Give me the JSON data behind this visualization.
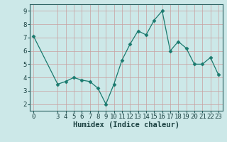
{
  "x": [
    0,
    3,
    4,
    5,
    6,
    7,
    8,
    9,
    10,
    11,
    12,
    13,
    14,
    15,
    16,
    17,
    18,
    19,
    20,
    21,
    22,
    23
  ],
  "y": [
    7.1,
    3.5,
    3.7,
    4.0,
    3.8,
    3.7,
    3.2,
    2.0,
    3.5,
    5.3,
    6.5,
    7.5,
    7.2,
    8.3,
    9.0,
    6.0,
    6.7,
    6.2,
    5.0,
    5.0,
    5.5,
    4.2
  ],
  "line_color": "#1a7a6e",
  "marker": "D",
  "marker_size": 2.5,
  "bg_color": "#cce8e8",
  "grid_color": "#b0cccc",
  "xlabel": "Humidex (Indice chaleur)",
  "xlabel_fontsize": 7.5,
  "tick_fontsize": 6.5,
  "xlim": [
    -0.5,
    23.5
  ],
  "ylim": [
    1.5,
    9.5
  ],
  "yticks": [
    2,
    3,
    4,
    5,
    6,
    7,
    8,
    9
  ],
  "xticks": [
    0,
    3,
    4,
    5,
    6,
    7,
    8,
    9,
    10,
    11,
    12,
    13,
    14,
    15,
    16,
    17,
    18,
    19,
    20,
    21,
    22,
    23
  ]
}
